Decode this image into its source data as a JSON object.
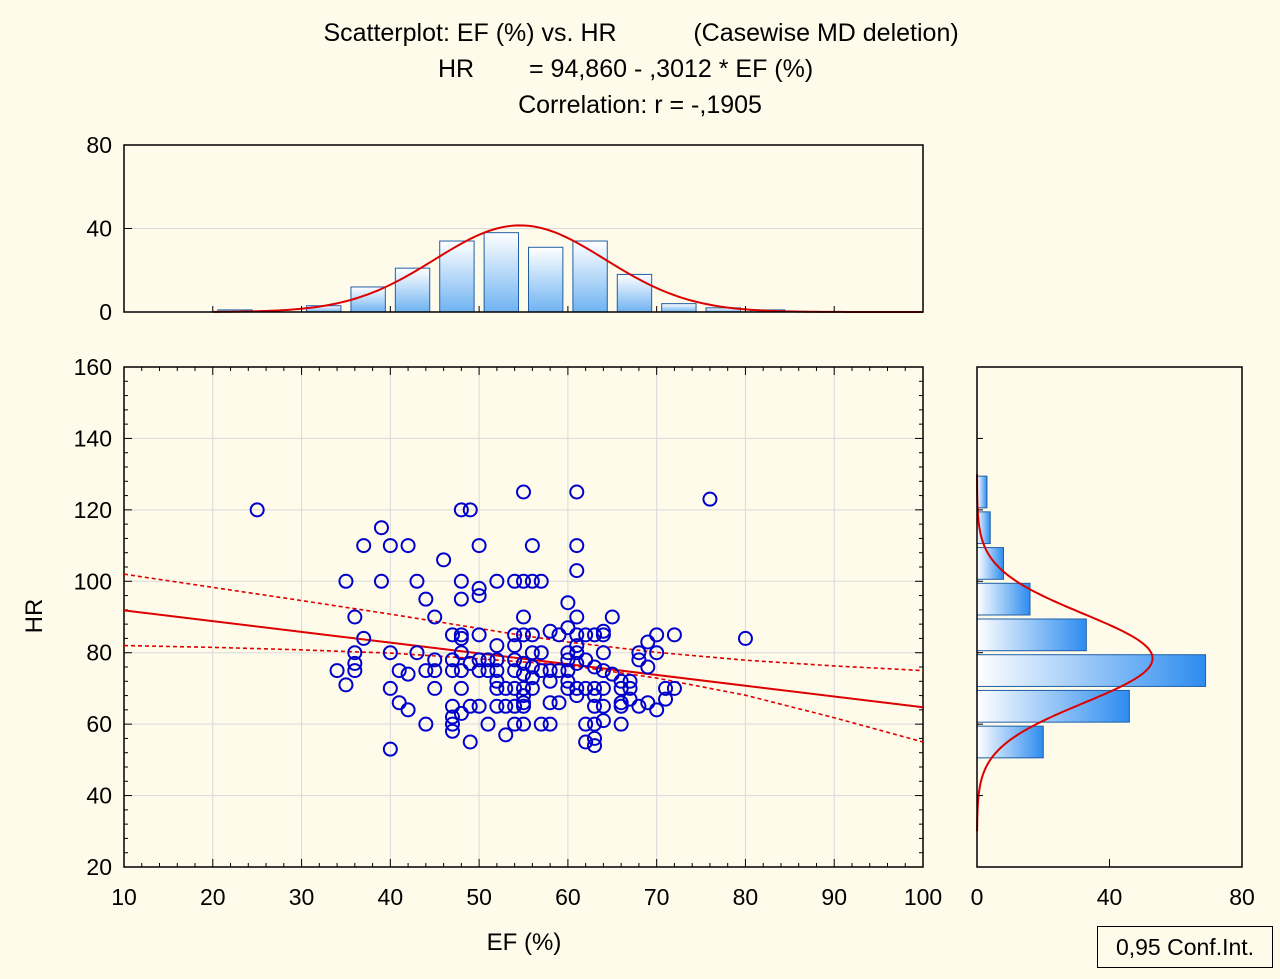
{
  "title": {
    "line1_a": "Scatterplot: EF (%) vs. HR",
    "line1_b": "(Casewise MD deletion)",
    "line2_a": "HR",
    "line2_b": "= 94,860 - ,3012  * EF (%)",
    "line3": "Correlation: r = -,1905"
  },
  "legend_label": "0,95 Conf.Int.",
  "colors": {
    "background": "#fffbeb",
    "points": "#0000cc",
    "regression": "#dd0000",
    "bar_fill_light": "#ffffff",
    "bar_fill_dark": "#2d8cf0",
    "bar_stroke": "#1f5fa8",
    "grid": "#d9d9d9"
  },
  "chart_data": [
    {
      "id": "scatter",
      "type": "scatter",
      "xlabel": "EF (%)",
      "ylabel": "HR",
      "xlim": [
        10,
        100
      ],
      "ylim": [
        20,
        160
      ],
      "xticks": [
        10,
        20,
        30,
        40,
        50,
        60,
        70,
        80,
        90,
        100
      ],
      "yticks": [
        20,
        40,
        60,
        80,
        100,
        120,
        140,
        160
      ],
      "grid": true,
      "regression": {
        "intercept": 94.86,
        "slope": -0.3012,
        "r": -0.1905
      },
      "conf_band": {
        "x": [
          10,
          20,
          30,
          40,
          50,
          55,
          60,
          70,
          80,
          90,
          100
        ],
        "upper": [
          102,
          98.3,
          94.6,
          90.8,
          86.8,
          84.8,
          83,
          80.1,
          77.9,
          76.3,
          75
        ],
        "lower": [
          82,
          81.5,
          80.8,
          79.9,
          78.3,
          77.4,
          76.5,
          72.9,
          68.1,
          61.8,
          55
        ]
      },
      "points": [
        [
          25,
          120
        ],
        [
          35,
          100
        ],
        [
          34,
          75
        ],
        [
          35,
          71
        ],
        [
          36,
          90
        ],
        [
          36,
          80
        ],
        [
          36,
          77
        ],
        [
          36,
          75
        ],
        [
          37,
          84
        ],
        [
          37,
          110
        ],
        [
          39,
          115
        ],
        [
          39,
          100
        ],
        [
          40,
          110
        ],
        [
          40,
          80
        ],
        [
          40,
          70
        ],
        [
          40,
          53
        ],
        [
          41,
          75
        ],
        [
          41,
          66
        ],
        [
          42,
          110
        ],
        [
          42,
          74
        ],
        [
          42,
          64
        ],
        [
          43,
          100
        ],
        [
          43,
          80
        ],
        [
          44,
          95
        ],
        [
          44,
          75
        ],
        [
          44,
          60
        ],
        [
          45,
          90
        ],
        [
          45,
          78
        ],
        [
          45,
          75
        ],
        [
          45,
          70
        ],
        [
          46,
          106
        ],
        [
          47,
          85
        ],
        [
          47,
          78
        ],
        [
          47,
          75
        ],
        [
          47,
          65
        ],
        [
          47,
          62
        ],
        [
          47,
          60
        ],
        [
          47,
          58
        ],
        [
          48,
          120
        ],
        [
          48,
          100
        ],
        [
          48,
          95
        ],
        [
          48,
          85
        ],
        [
          48,
          84
        ],
        [
          48,
          80
        ],
        [
          48,
          75
        ],
        [
          48,
          70
        ],
        [
          48,
          63
        ],
        [
          49,
          120
        ],
        [
          49,
          77
        ],
        [
          49,
          65
        ],
        [
          49,
          55
        ],
        [
          50,
          110
        ],
        [
          50,
          98
        ],
        [
          50,
          96
        ],
        [
          50,
          85
        ],
        [
          50,
          78
        ],
        [
          50,
          75
        ],
        [
          50,
          65
        ],
        [
          51,
          78
        ],
        [
          51,
          75
        ],
        [
          51,
          60
        ],
        [
          52,
          100
        ],
        [
          52,
          82
        ],
        [
          52,
          78
        ],
        [
          52,
          75
        ],
        [
          52,
          72
        ],
        [
          52,
          70
        ],
        [
          52,
          65
        ],
        [
          53,
          70
        ],
        [
          53,
          65
        ],
        [
          53,
          57
        ],
        [
          54,
          100
        ],
        [
          54,
          85
        ],
        [
          54,
          82
        ],
        [
          54,
          78
        ],
        [
          54,
          75
        ],
        [
          54,
          70
        ],
        [
          54,
          65
        ],
        [
          54,
          60
        ],
        [
          55,
          125
        ],
        [
          55,
          100
        ],
        [
          55,
          90
        ],
        [
          55,
          85
        ],
        [
          55,
          77
        ],
        [
          55,
          74
        ],
        [
          55,
          70
        ],
        [
          55,
          68
        ],
        [
          55,
          66
        ],
        [
          55,
          65
        ],
        [
          55,
          60
        ],
        [
          56,
          110
        ],
        [
          56,
          100
        ],
        [
          56,
          85
        ],
        [
          56,
          80
        ],
        [
          56,
          76
        ],
        [
          56,
          73
        ],
        [
          56,
          70
        ],
        [
          57,
          100
        ],
        [
          57,
          80
        ],
        [
          57,
          75
        ],
        [
          57,
          60
        ],
        [
          58,
          86
        ],
        [
          58,
          75
        ],
        [
          58,
          72
        ],
        [
          58,
          66
        ],
        [
          58,
          60
        ],
        [
          59,
          85
        ],
        [
          59,
          75
        ],
        [
          59,
          66
        ],
        [
          60,
          94
        ],
        [
          60,
          87
        ],
        [
          60,
          80
        ],
        [
          60,
          78
        ],
        [
          60,
          75
        ],
        [
          60,
          72
        ],
        [
          60,
          70
        ],
        [
          61,
          125
        ],
        [
          61,
          110
        ],
        [
          61,
          103
        ],
        [
          61,
          90
        ],
        [
          61,
          85
        ],
        [
          61,
          82
        ],
        [
          61,
          80
        ],
        [
          61,
          77
        ],
        [
          61,
          70
        ],
        [
          61,
          68
        ],
        [
          62,
          85
        ],
        [
          62,
          78
        ],
        [
          62,
          70
        ],
        [
          62,
          60
        ],
        [
          62,
          55
        ],
        [
          63,
          85
        ],
        [
          63,
          76
        ],
        [
          63,
          70
        ],
        [
          63,
          68
        ],
        [
          63,
          65
        ],
        [
          63,
          60
        ],
        [
          63,
          56
        ],
        [
          63,
          54
        ],
        [
          64,
          86
        ],
        [
          64,
          85
        ],
        [
          64,
          80
        ],
        [
          64,
          75
        ],
        [
          64,
          70
        ],
        [
          64,
          65
        ],
        [
          64,
          61
        ],
        [
          65,
          90
        ],
        [
          65,
          74
        ],
        [
          66,
          72
        ],
        [
          66,
          70
        ],
        [
          66,
          66
        ],
        [
          66,
          65
        ],
        [
          66,
          60
        ],
        [
          67,
          72
        ],
        [
          67,
          70
        ],
        [
          67,
          67
        ],
        [
          68,
          78
        ],
        [
          68,
          65
        ],
        [
          68,
          80
        ],
        [
          69,
          83
        ],
        [
          69,
          76
        ],
        [
          69,
          66
        ],
        [
          70,
          85
        ],
        [
          70,
          80
        ],
        [
          70,
          64
        ],
        [
          71,
          70
        ],
        [
          71,
          67
        ],
        [
          72,
          85
        ],
        [
          72,
          70
        ],
        [
          76,
          123
        ],
        [
          80,
          84
        ]
      ]
    },
    {
      "id": "hist-x",
      "type": "bar",
      "xlabel": "",
      "ylabel": "",
      "bins": [
        [
          20,
          25
        ],
        [
          25,
          30
        ],
        [
          30,
          35
        ],
        [
          35,
          40
        ],
        [
          40,
          45
        ],
        [
          45,
          50
        ],
        [
          50,
          55
        ],
        [
          55,
          60
        ],
        [
          60,
          65
        ],
        [
          65,
          70
        ],
        [
          70,
          75
        ],
        [
          75,
          80
        ],
        [
          80,
          85
        ]
      ],
      "values": [
        1,
        0,
        3,
        12,
        21,
        34,
        38,
        31,
        34,
        18,
        4,
        2,
        1
      ],
      "ylim": [
        0,
        80
      ],
      "yticks": [
        0,
        40,
        80
      ],
      "normal_curve": {
        "mean": 54.6,
        "sd": 9.6,
        "peak": 41.5
      }
    },
    {
      "id": "hist-y",
      "type": "bar",
      "orientation": "horizontal",
      "bins": [
        [
          50,
          60
        ],
        [
          60,
          70
        ],
        [
          70,
          80
        ],
        [
          80,
          90
        ],
        [
          90,
          100
        ],
        [
          100,
          110
        ],
        [
          110,
          120
        ],
        [
          120,
          130
        ]
      ],
      "values": [
        20,
        46,
        69,
        33,
        16,
        8,
        4,
        3
      ],
      "xlim": [
        0,
        80
      ],
      "xticks": [
        0,
        40,
        80
      ],
      "normal_curve": {
        "mean": 78.4,
        "sd": 12.5,
        "peak": 53
      }
    }
  ]
}
